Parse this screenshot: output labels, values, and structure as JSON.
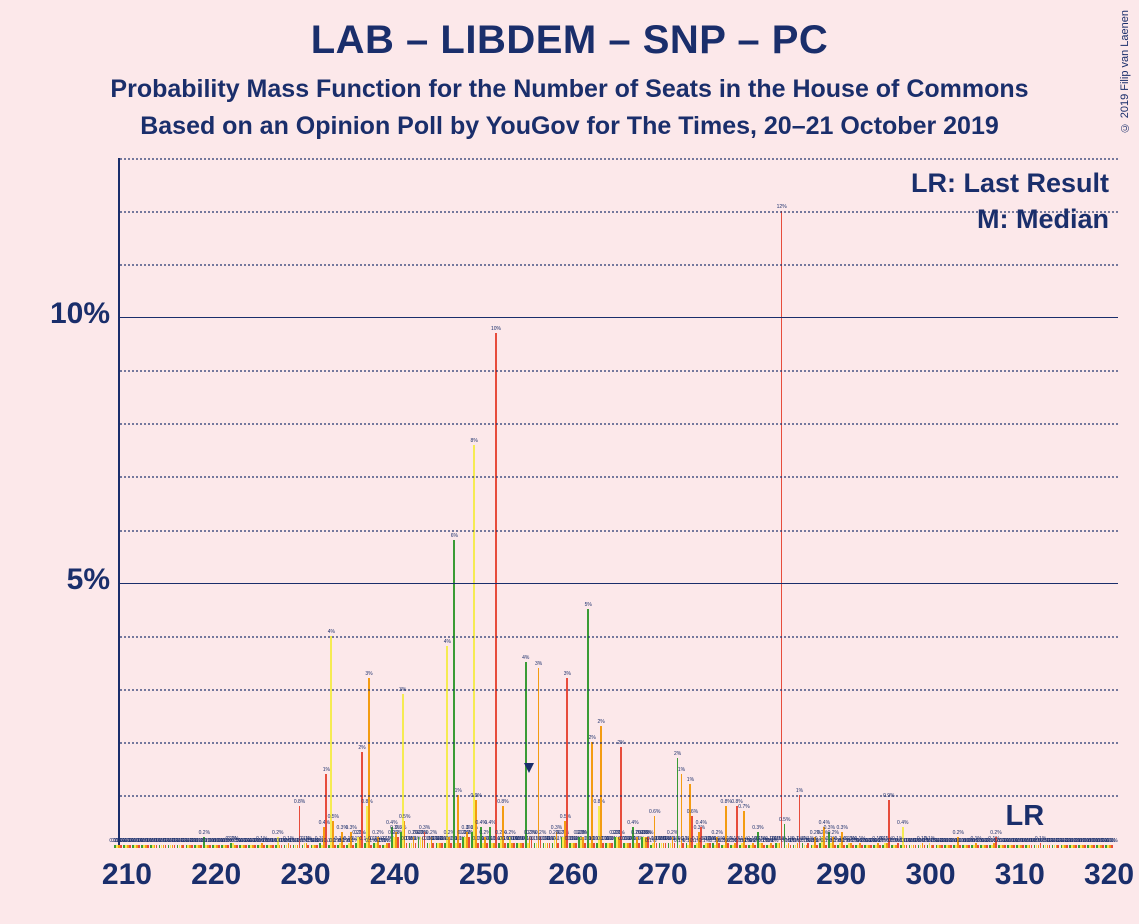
{
  "title": "LAB – LIBDEM – SNP – PC",
  "subtitle1": "Probability Mass Function for the Number of Seats in the House of Commons",
  "subtitle2": "Based on an Opinion Poll by YouGov for The Times, 20–21 October 2019",
  "copyright": "© 2019 Filip van Laenen",
  "legend_lr": "LR: Last Result",
  "legend_m": "M: Median",
  "lr_text": "LR",
  "chart": {
    "type": "grouped-bar",
    "background_color": "#fce8ea",
    "axis_color": "#1a2e6b",
    "text_color": "#1a2e6b",
    "title_fontsize": 40,
    "subtitle_fontsize": 25,
    "axis_label_fontsize": 30,
    "legend_fontsize": 27,
    "x_range": [
      209,
      321
    ],
    "x_ticks": [
      210,
      220,
      230,
      240,
      250,
      260,
      270,
      280,
      290,
      300,
      310,
      320
    ],
    "y_range": [
      0,
      13
    ],
    "y_major_ticks": [
      5,
      10
    ],
    "y_minor_step": 1,
    "ylabel_suffix": "%",
    "series": [
      {
        "name": "green",
        "color": "#3a9b35"
      },
      {
        "name": "yellow",
        "color": "#f5eb52"
      },
      {
        "name": "orange",
        "color": "#f39c12"
      },
      {
        "name": "red",
        "color": "#e74c3c"
      }
    ],
    "bar_group_width": 0.88,
    "lr_x": 314,
    "m_x": 255,
    "m_arrow_y_top": 1.6,
    "data": {
      "209": [
        0.05,
        0.05,
        0.05,
        0.05
      ],
      "210": [
        0.05,
        0.05,
        0.05,
        0.05
      ],
      "211": [
        0.05,
        0.05,
        0.05,
        0.05
      ],
      "212": [
        0.05,
        0.05,
        0.05,
        0.05
      ],
      "213": [
        0.05,
        0.05,
        0.05,
        0.05
      ],
      "214": [
        0.05,
        0.05,
        0.05,
        0.05
      ],
      "215": [
        0.05,
        0.05,
        0.05,
        0.05
      ],
      "216": [
        0.05,
        0.05,
        0.05,
        0.05
      ],
      "217": [
        0.05,
        0.05,
        0.05,
        0.05
      ],
      "218": [
        0.05,
        0.05,
        0.05,
        0.05
      ],
      "219": [
        0.2,
        0.05,
        0.05,
        0.05
      ],
      "220": [
        0.05,
        0.05,
        0.05,
        0.05
      ],
      "221": [
        0.05,
        0.05,
        0.05,
        0.05
      ],
      "222": [
        0.1,
        0.1,
        0.05,
        0.05
      ],
      "223": [
        0.05,
        0.05,
        0.05,
        0.05
      ],
      "224": [
        0.05,
        0.05,
        0.05,
        0.05
      ],
      "225": [
        0.05,
        0.05,
        0.1,
        0.05
      ],
      "226": [
        0.05,
        0.05,
        0.05,
        0.05
      ],
      "227": [
        0.05,
        0.2,
        0.05,
        0.05
      ],
      "228": [
        0.05,
        0.05,
        0.1,
        0.05
      ],
      "229": [
        0.05,
        0.05,
        0.05,
        0.8
      ],
      "230": [
        0.05,
        0.1,
        0.1,
        0.05
      ],
      "231": [
        0.05,
        0.05,
        0.05,
        0.05
      ],
      "232": [
        0.1,
        0.05,
        0.4,
        1.4
      ],
      "233": [
        0.05,
        4.0,
        0.5,
        0.05
      ],
      "234": [
        0.05,
        0.1,
        0.3,
        0.05
      ],
      "235": [
        0.05,
        0.1,
        0.3,
        0.05
      ],
      "236": [
        0.1,
        0.2,
        0.2,
        1.8
      ],
      "237": [
        0.1,
        0.8,
        3.2,
        0.05
      ],
      "238": [
        0.1,
        0.1,
        0.2,
        0.05
      ],
      "239": [
        0.05,
        0.05,
        0.1,
        0.1
      ],
      "240": [
        0.4,
        0.2,
        0.3,
        0.2
      ],
      "241": [
        0.3,
        2.9,
        0.5,
        0.1
      ],
      "242": [
        0.1,
        0.1,
        0.2,
        0.1
      ],
      "243": [
        0.2,
        0.2,
        0.2,
        0.3
      ],
      "244": [
        0.1,
        0.1,
        0.2,
        0.1
      ],
      "245": [
        0.1,
        0.1,
        0.1,
        0.1
      ],
      "246": [
        0.1,
        3.8,
        0.2,
        0.1
      ],
      "247": [
        5.8,
        0.1,
        1.0,
        0.1
      ],
      "248": [
        0.2,
        0.2,
        0.3,
        0.2
      ],
      "249": [
        0.3,
        7.6,
        0.9,
        0.1
      ],
      "250": [
        0.4,
        0.1,
        0.2,
        0.1
      ],
      "251": [
        0.4,
        0.1,
        0.1,
        9.7
      ],
      "252": [
        0.1,
        0.2,
        0.8,
        0.1
      ],
      "253": [
        0.1,
        0.2,
        0.1,
        0.1
      ],
      "254": [
        0.1,
        0.1,
        0.1,
        0.1
      ],
      "255": [
        3.5,
        0.1,
        0.2,
        0.2
      ],
      "256": [
        0.1,
        0.1,
        3.4,
        0.2
      ],
      "257": [
        0.1,
        0.1,
        0.1,
        0.1
      ],
      "258": [
        0.1,
        0.2,
        0.3,
        0.1
      ],
      "259": [
        0.2,
        0.2,
        0.5,
        3.2
      ],
      "260": [
        0.1,
        0.1,
        0.1,
        0.1
      ],
      "261": [
        0.2,
        0.2,
        0.2,
        0.1
      ],
      "262": [
        4.5,
        0.1,
        2.0,
        0.1
      ],
      "263": [
        0.1,
        0.8,
        2.3,
        0.1
      ],
      "264": [
        0.1,
        0.1,
        0.1,
        0.1
      ],
      "265": [
        0.2,
        0.2,
        0.2,
        1.9
      ],
      "266": [
        0.1,
        0.1,
        0.1,
        0.1
      ],
      "267": [
        0.4,
        0.1,
        0.2,
        0.1
      ],
      "268": [
        0.2,
        0.2,
        0.2,
        0.2
      ],
      "269": [
        0.05,
        0.1,
        0.6,
        0.1
      ],
      "270": [
        0.1,
        0.1,
        0.1,
        0.1
      ],
      "271": [
        0.1,
        0.1,
        0.2,
        0.1
      ],
      "272": [
        1.7,
        0.05,
        1.4,
        0.1
      ],
      "273": [
        0.1,
        0.05,
        1.2,
        0.6
      ],
      "274": [
        0.05,
        0.1,
        0.3,
        0.4
      ],
      "275": [
        0.05,
        0.1,
        0.1,
        0.1
      ],
      "276": [
        0.1,
        0.05,
        0.2,
        0.1
      ],
      "277": [
        0.05,
        0.05,
        0.8,
        0.1
      ],
      "278": [
        0.05,
        0.05,
        0.1,
        0.8
      ],
      "279": [
        0.05,
        0.1,
        0.7,
        0.05
      ],
      "280": [
        0.05,
        0.05,
        0.1,
        0.05
      ],
      "281": [
        0.3,
        0.1,
        0.1,
        0.05
      ],
      "282": [
        0.05,
        0.05,
        0.1,
        0.05
      ],
      "283": [
        0.1,
        0.1,
        0.1,
        12.0
      ],
      "284": [
        0.45,
        0.05,
        0.1,
        0.05
      ],
      "285": [
        0.05,
        0.05,
        0.1,
        1.0
      ],
      "286": [
        0.1,
        0.05,
        0.05,
        0.1
      ],
      "287": [
        0.05,
        0.05,
        0.2,
        0.05
      ],
      "288": [
        0.1,
        0.2,
        0.4,
        0.05
      ],
      "289": [
        0.3,
        0.1,
        0.2,
        0.05
      ],
      "290": [
        0.05,
        0.1,
        0.3,
        0.05
      ],
      "291": [
        0.05,
        0.1,
        0.1,
        0.05
      ],
      "292": [
        0.05,
        0.05,
        0.1,
        0.05
      ],
      "293": [
        0.05,
        0.05,
        0.05,
        0.05
      ],
      "294": [
        0.05,
        0.05,
        0.1,
        0.05
      ],
      "295": [
        0.05,
        0.1,
        0.1,
        0.9
      ],
      "296": [
        0.05,
        0.05,
        0.05,
        0.1
      ],
      "297": [
        0.05,
        0.4,
        0.05,
        0.05
      ],
      "298": [
        0.05,
        0.05,
        0.05,
        0.05
      ],
      "299": [
        0.05,
        0.05,
        0.1,
        0.05
      ],
      "300": [
        0.05,
        0.1,
        0.05,
        0.05
      ],
      "301": [
        0.05,
        0.05,
        0.05,
        0.05
      ],
      "302": [
        0.05,
        0.05,
        0.05,
        0.05
      ],
      "303": [
        0.05,
        0.05,
        0.2,
        0.05
      ],
      "304": [
        0.05,
        0.05,
        0.05,
        0.05
      ],
      "305": [
        0.05,
        0.05,
        0.1,
        0.05
      ],
      "306": [
        0.05,
        0.05,
        0.05,
        0.05
      ],
      "307": [
        0.05,
        0.05,
        0.1,
        0.2
      ],
      "308": [
        0.05,
        0.05,
        0.05,
        0.05
      ],
      "309": [
        0.05,
        0.05,
        0.05,
        0.05
      ],
      "310": [
        0.05,
        0.05,
        0.05,
        0.05
      ],
      "311": [
        0.05,
        0.05,
        0.05,
        0.05
      ],
      "312": [
        0.05,
        0.05,
        0.05,
        0.1
      ],
      "313": [
        0.05,
        0.05,
        0.05,
        0.05
      ],
      "314": [
        0.05,
        0.05,
        0.05,
        0.05
      ],
      "315": [
        0.05,
        0.05,
        0.05,
        0.05
      ],
      "316": [
        0.05,
        0.05,
        0.05,
        0.05
      ],
      "317": [
        0.05,
        0.05,
        0.05,
        0.05
      ],
      "318": [
        0.05,
        0.05,
        0.05,
        0.05
      ],
      "319": [
        0.05,
        0.05,
        0.05,
        0.05
      ],
      "320": [
        0.05,
        0.05,
        0.05,
        0.05
      ]
    }
  }
}
